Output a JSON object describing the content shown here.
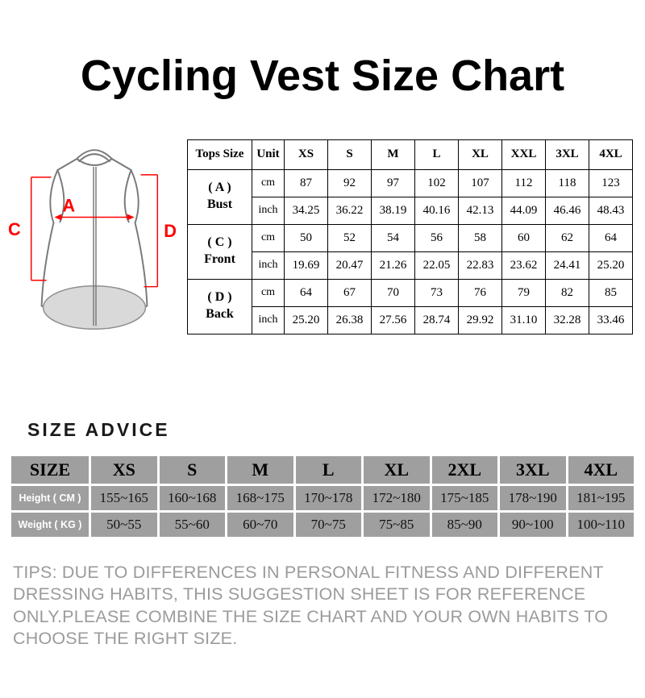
{
  "title": "Cycling Vest Size Chart",
  "vest": {
    "label_a": "A",
    "label_c": "C",
    "label_d": "D",
    "accent_color": "#ff0000",
    "outline_color": "#7a7a7a",
    "shade_color": "#d9d9d9"
  },
  "size_chart": {
    "header": [
      "Tops Size",
      "Unit",
      "XS",
      "S",
      "M",
      "L",
      "XL",
      "XXL",
      "3XL",
      "4XL"
    ],
    "units": [
      "cm",
      "inch"
    ],
    "rows": [
      {
        "code": "( A )",
        "name": "Bust",
        "cm": [
          "87",
          "92",
          "97",
          "102",
          "107",
          "112",
          "118",
          "123"
        ],
        "inch": [
          "34.25",
          "36.22",
          "38.19",
          "40.16",
          "42.13",
          "44.09",
          "46.46",
          "48.43"
        ]
      },
      {
        "code": "( C )",
        "name": "Front",
        "cm": [
          "50",
          "52",
          "54",
          "56",
          "58",
          "60",
          "62",
          "64"
        ],
        "inch": [
          "19.69",
          "20.47",
          "21.26",
          "22.05",
          "22.83",
          "23.62",
          "24.41",
          "25.20"
        ]
      },
      {
        "code": "( D )",
        "name": "Back",
        "cm": [
          "64",
          "67",
          "70",
          "73",
          "76",
          "79",
          "82",
          "85"
        ],
        "inch": [
          "25.20",
          "26.38",
          "27.56",
          "28.74",
          "29.92",
          "31.10",
          "32.28",
          "33.46"
        ]
      }
    ]
  },
  "size_advice": {
    "heading": "SIZE ADVICE",
    "header": [
      "SIZE",
      "XS",
      "S",
      "M",
      "L",
      "XL",
      "2XL",
      "3XL",
      "4XL"
    ],
    "rows": [
      {
        "label": "Height ( CM )",
        "values": [
          "155~165",
          "160~168",
          "168~175",
          "170~178",
          "172~180",
          "175~185",
          "178~190",
          "181~195"
        ]
      },
      {
        "label": "Weight ( KG )",
        "values": [
          "50~55",
          "55~60",
          "60~70",
          "70~75",
          "75~85",
          "85~90",
          "90~100",
          "100~110"
        ]
      }
    ]
  },
  "tips": "TIPS: DUE TO DIFFERENCES IN PERSONAL FITNESS AND DIFFERENT DRESSING HABITS, THIS SUGGESTION SHEET IS FOR REFERENCE ONLY.PLEASE COMBINE THE SIZE CHART AND YOUR OWN HABITS TO CHOOSE THE RIGHT SIZE."
}
